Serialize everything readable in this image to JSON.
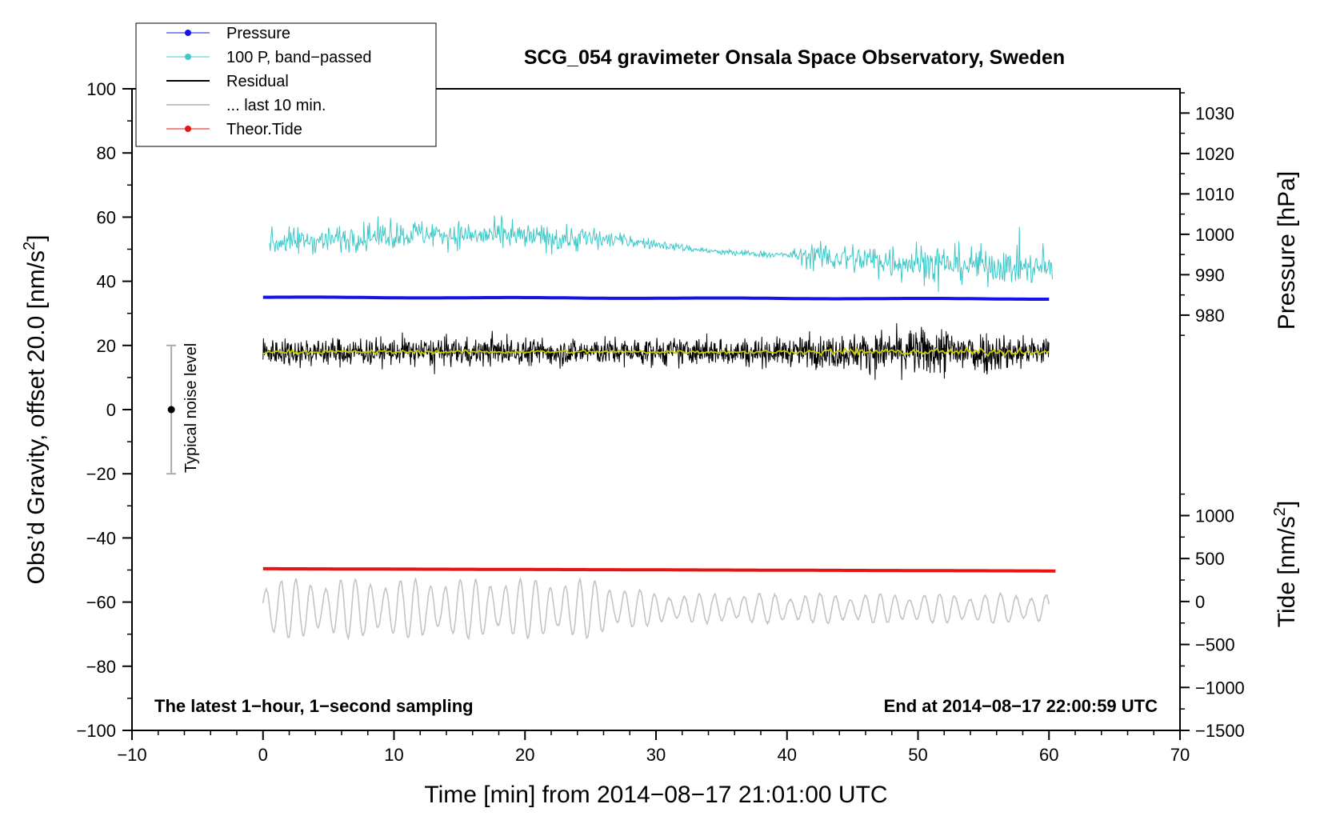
{
  "chart_data": {
    "type": "line",
    "title": "SCG_054 gravimeter Onsala Space Observatory, Sweden",
    "xlabel": "Time [min] from 2014−08−17 21:01:00 UTC",
    "ylabel_main": "Obs’d Gravity, offset 20.0 [nm/s",
    "ylabel_main_sup": "2",
    "ylabel_main_end": "]",
    "ylabel_pressure": "Pressure [hPa]",
    "ylabel_tide": "Tide [nm/s",
    "ylabel_tide_sup": "2",
    "ylabel_tide_end": "]",
    "xlim": [
      -10,
      70
    ],
    "ylim": [
      -100,
      100
    ],
    "x_ticks": [
      -10,
      0,
      10,
      20,
      30,
      40,
      50,
      60,
      70
    ],
    "x_tick_labels": [
      "−10",
      "0",
      "10",
      "20",
      "30",
      "40",
      "50",
      "60",
      "70"
    ],
    "y_ticks": [
      -100,
      -80,
      -60,
      -40,
      -20,
      0,
      20,
      40,
      60,
      80,
      100
    ],
    "y_tick_labels": [
      "−100",
      "−80",
      "−60",
      "−40",
      "−20",
      "0",
      "20",
      "40",
      "60",
      "80",
      "100"
    ],
    "pressure_axis": {
      "ticks": [
        980,
        990,
        1000,
        1010,
        1020,
        1030
      ],
      "tick_labels": [
        "980",
        "990",
        "1000",
        "1010",
        "1020",
        "1030"
      ],
      "range": [
        972.5,
        1036
      ],
      "main_range": [
        20,
        100
      ]
    },
    "tide_axis": {
      "ticks": [
        -1500,
        -1000,
        -500,
        0,
        500,
        1000
      ],
      "tick_labels": [
        "−1500",
        "−1000",
        "−500",
        "0",
        "500",
        "1000"
      ],
      "range": [
        -1500,
        1300
      ],
      "main_range": [
        -100,
        -25
      ]
    },
    "series": [
      {
        "name": "Pressure",
        "color": "#1414e6",
        "kind": "line-marker",
        "x_range": [
          0,
          60.3
        ],
        "center": 35,
        "end": 34.5,
        "amplitude": 0.3
      },
      {
        "name": "100 P, band−passed",
        "color": "#40c8c8",
        "kind": "noise",
        "x_range": [
          0.5,
          60.3
        ],
        "baseline": [
          [
            0.5,
            52
          ],
          [
            12,
            55
          ],
          [
            18,
            54
          ],
          [
            27,
            53
          ],
          [
            35,
            49
          ],
          [
            41,
            48
          ],
          [
            45,
            47
          ],
          [
            50,
            46
          ],
          [
            60,
            44
          ]
        ],
        "amplitude": [
          [
            0.5,
            6
          ],
          [
            25,
            6
          ],
          [
            27,
            3
          ],
          [
            33,
            1.5
          ],
          [
            40,
            1.5
          ],
          [
            42,
            6
          ],
          [
            50,
            9
          ],
          [
            60,
            7
          ]
        ]
      },
      {
        "name": "Residual",
        "color": "#000000",
        "kind": "noise",
        "x_range": [
          0,
          60
        ],
        "baseline": [
          [
            0,
            18
          ],
          [
            60,
            18
          ]
        ],
        "amplitude": [
          [
            0,
            6
          ],
          [
            40,
            6
          ],
          [
            45,
            8
          ],
          [
            52,
            11
          ],
          [
            56,
            9
          ],
          [
            60,
            6
          ]
        ]
      },
      {
        "name": "... last 10 min.",
        "color": "#c4c4c4",
        "kind": "wave",
        "x_range": [
          0,
          60
        ],
        "baseline": [
          [
            0,
            -62
          ],
          [
            60,
            -62
          ]
        ],
        "amplitude": [
          [
            0,
            8
          ],
          [
            25,
            8
          ],
          [
            30,
            4
          ],
          [
            60,
            4
          ]
        ]
      },
      {
        "name": "Theor.Tide",
        "color": "#e61414",
        "kind": "line-marker",
        "x_range": [
          0,
          60.5
        ],
        "center": -49.6,
        "end": -50.3,
        "amplitude": 0
      }
    ],
    "smoothed_residual_color": "#c8c800",
    "noise_bar": {
      "x": -7,
      "center": 0,
      "half_range": 20,
      "label": "Typical noise level"
    },
    "annotations": {
      "left_note": "The latest 1−hour, 1−second sampling",
      "right_note": "End at 2014−08−17 22:00:59 UTC"
    },
    "legend_position": "top-left"
  }
}
